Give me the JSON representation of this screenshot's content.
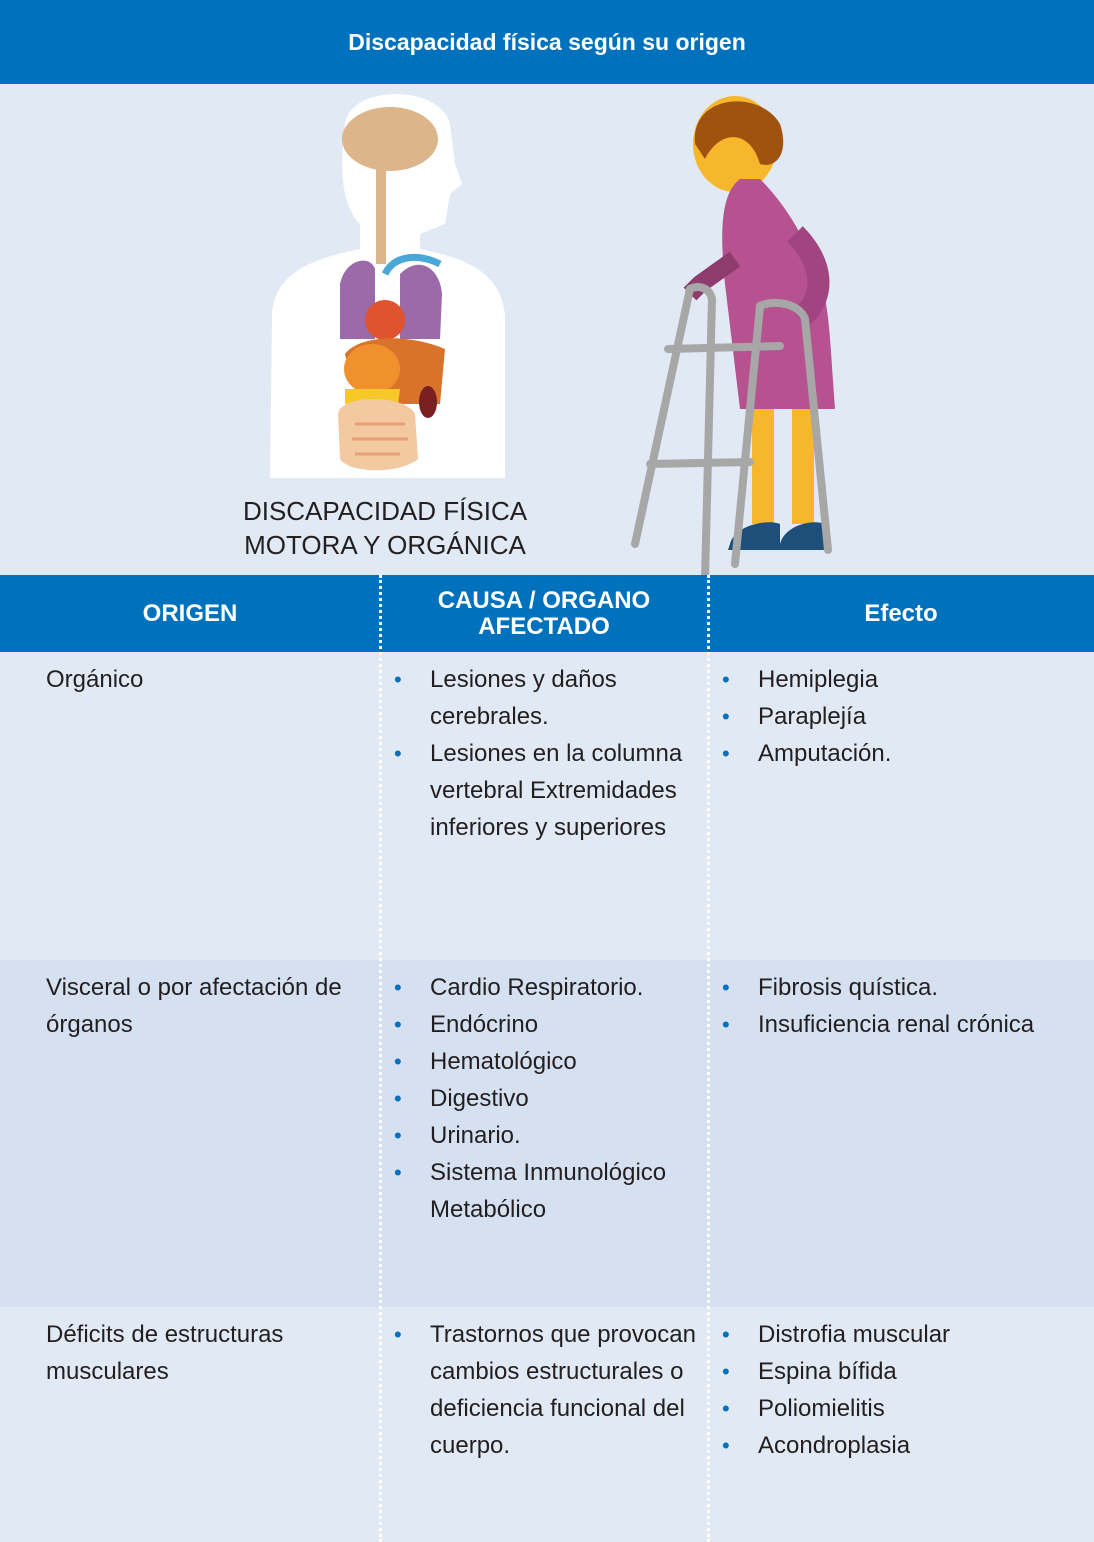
{
  "title": "Discapacidad física según su origen",
  "illustration": {
    "caption": [
      "DISCAPACIDAD FÍSICA",
      "MOTORA Y ORGÁNICA"
    ]
  },
  "table": {
    "header": [
      "ORIGEN",
      "CAUSA / ORGANO AFECTADO",
      "Efecto"
    ],
    "rows": [
      {
        "origin": "Orgánico",
        "causes": [
          "Lesiones y daños cerebrales.",
          "Lesiones en la columna vertebral Extremidades inferiores y superiores"
        ],
        "effects": [
          "Hemiplegia",
          "Paraplejía",
          "Amputación."
        ]
      },
      {
        "origin": "Visceral o por afectación de órganos",
        "causes": [
          "Cardio Respiratorio.",
          "Endócrino",
          "Hematológico",
          "Digestivo",
          "Urinario.",
          "Sistema Inmunológico Metabólico"
        ],
        "effects": [
          "Fibrosis quística.",
          "Insuficiencia renal crónica"
        ]
      },
      {
        "origin": "Déficits de estructuras musculares",
        "causes": [
          "Trastornos que provocan cambios estructurales o deficiencia funcional del cuerpo."
        ],
        "effects": [
          "Distrofia muscular",
          "Espina bífida",
          "Poliomielitis",
          "Acondroplasia"
        ]
      }
    ]
  }
}
